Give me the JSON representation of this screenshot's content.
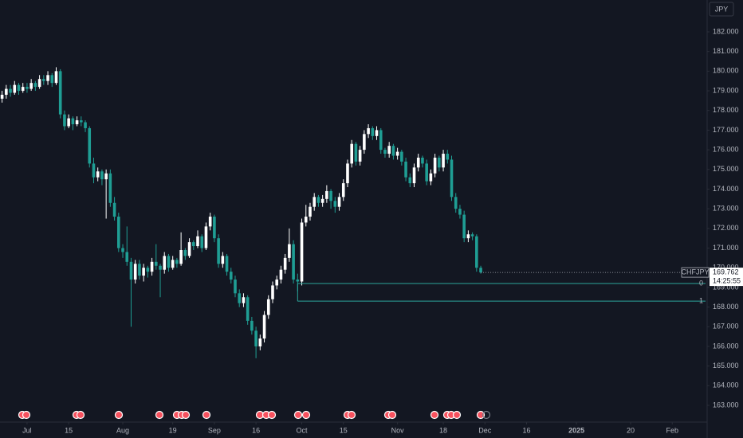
{
  "chart_data": {
    "type": "candlestick",
    "currency": "JPY",
    "symbol": "CHFJPY",
    "last_price": 169.762,
    "countdown": "14:25:55",
    "up_color": "#ffffff",
    "down_color": "#1f9e94",
    "line_color": "#2ba69b",
    "ylim": [
      162.15,
      183.62
    ],
    "yticks": [
      {
        "value": 163,
        "label": "163.000"
      },
      {
        "value": 164,
        "label": "164.000"
      },
      {
        "value": 165,
        "label": "165.000"
      },
      {
        "value": 166,
        "label": "166.000"
      },
      {
        "value": 167,
        "label": "167.000"
      },
      {
        "value": 168,
        "label": "168.000"
      },
      {
        "value": 169,
        "label": "169.000"
      },
      {
        "value": 170,
        "label": "170.000"
      },
      {
        "value": 171,
        "label": "171.000"
      },
      {
        "value": 172,
        "label": "172.000"
      },
      {
        "value": 173,
        "label": "173.000"
      },
      {
        "value": 174,
        "label": "174.000"
      },
      {
        "value": 175,
        "label": "175.000"
      },
      {
        "value": 176,
        "label": "176.000"
      },
      {
        "value": 177,
        "label": "177.000"
      },
      {
        "value": 178,
        "label": "178.000"
      },
      {
        "value": 179,
        "label": "179.000"
      },
      {
        "value": 180,
        "label": "180.000"
      },
      {
        "value": 181,
        "label": "181.000"
      },
      {
        "value": 182,
        "label": "182.000"
      }
    ],
    "xlim": [
      -6.5,
      163
    ],
    "xticks": [
      {
        "value": 0,
        "label": "Jul"
      },
      {
        "value": 10,
        "label": "15"
      },
      {
        "value": 23,
        "label": "Aug"
      },
      {
        "value": 35,
        "label": "19"
      },
      {
        "value": 45,
        "label": "Sep"
      },
      {
        "value": 55,
        "label": "16"
      },
      {
        "value": 66,
        "label": "Oct"
      },
      {
        "value": 76,
        "label": "15"
      },
      {
        "value": 89,
        "label": "Nov"
      },
      {
        "value": 100,
        "label": "18"
      },
      {
        "value": 110,
        "label": "Dec"
      },
      {
        "value": 120,
        "label": "16"
      },
      {
        "value": 132,
        "label": "2025"
      },
      {
        "value": 145,
        "label": "20"
      },
      {
        "value": 155,
        "label": "Feb"
      }
    ],
    "fib_from": 65,
    "fib_levels": [
      {
        "label": "0",
        "value": 169.2
      },
      {
        "label": "1",
        "value": 168.3
      }
    ],
    "x": [
      -6,
      -5,
      -4,
      -3,
      -2,
      -1,
      0,
      1,
      2,
      3,
      4,
      5,
      6,
      7,
      8,
      9,
      10,
      11,
      12,
      13,
      14,
      15,
      16,
      17,
      18,
      19,
      20,
      21,
      22,
      23,
      24,
      25,
      26,
      27,
      28,
      29,
      30,
      31,
      32,
      33,
      34,
      35,
      36,
      37,
      38,
      39,
      40,
      41,
      42,
      43,
      44,
      45,
      46,
      47,
      48,
      49,
      50,
      51,
      52,
      53,
      54,
      55,
      56,
      57,
      58,
      59,
      60,
      61,
      62,
      63,
      64,
      65,
      66,
      67,
      68,
      69,
      70,
      71,
      72,
      73,
      74,
      75,
      76,
      77,
      78,
      79,
      80,
      81,
      82,
      83,
      84,
      85,
      86,
      87,
      88,
      89,
      90,
      91,
      92,
      93,
      94,
      95,
      96,
      97,
      98,
      99,
      100,
      101,
      102,
      103,
      104,
      105,
      106,
      107,
      108,
      109
    ],
    "open": [
      178.6,
      178.8,
      179.1,
      178.9,
      179.3,
      179.0,
      179.2,
      179.1,
      179.4,
      179.2,
      179.6,
      179.5,
      179.8,
      179.4,
      180.0,
      177.8,
      177.2,
      177.6,
      177.3,
      177.5,
      177.4,
      177.1,
      175.3,
      174.6,
      174.9,
      174.5,
      174.8,
      173.3,
      172.6,
      171.0,
      170.8,
      170.3,
      169.4,
      170.2,
      169.6,
      170.0,
      169.8,
      170.3,
      170.1,
      169.9,
      170.6,
      170.0,
      170.4,
      170.2,
      170.9,
      170.6,
      171.3,
      171.1,
      171.6,
      171.0,
      172.1,
      172.6,
      171.5,
      170.2,
      170.6,
      169.8,
      169.4,
      168.7,
      168.2,
      168.5,
      167.3,
      166.8,
      166.0,
      166.4,
      167.6,
      168.4,
      169.1,
      169.4,
      169.9,
      170.5,
      171.2,
      169.4,
      169.3,
      172.3,
      172.6,
      173.1,
      173.6,
      173.3,
      173.5,
      173.9,
      173.4,
      173.1,
      173.6,
      174.3,
      175.3,
      176.3,
      175.4,
      176.0,
      176.8,
      177.1,
      176.7,
      177.0,
      176.0,
      175.8,
      176.2,
      175.7,
      175.9,
      175.4,
      174.6,
      174.3,
      175.1,
      175.6,
      175.3,
      174.4,
      174.8,
      175.6,
      175.1,
      175.8,
      175.5,
      173.6,
      173.0,
      172.7,
      171.5,
      171.7,
      171.6,
      170.0
    ],
    "high": [
      179.0,
      179.3,
      179.3,
      179.5,
      179.4,
      179.4,
      179.4,
      179.6,
      179.5,
      179.8,
      179.8,
      180.0,
      179.9,
      180.2,
      180.1,
      178.0,
      177.8,
      177.7,
      177.7,
      177.7,
      177.5,
      177.2,
      175.6,
      175.1,
      175.0,
      175.0,
      175.0,
      173.6,
      172.8,
      171.2,
      172.1,
      170.5,
      170.4,
      170.4,
      170.2,
      170.1,
      170.5,
      171.2,
      170.2,
      170.8,
      170.7,
      170.6,
      170.5,
      171.8,
      171.0,
      171.5,
      171.4,
      171.9,
      171.7,
      172.3,
      172.8,
      172.7,
      171.7,
      170.8,
      170.7,
      170.0,
      169.6,
      168.9,
      168.7,
      168.6,
      167.5,
      167.0,
      166.6,
      167.8,
      168.6,
      169.3,
      169.6,
      170.1,
      170.7,
      172.0,
      171.4,
      169.7,
      172.5,
      173.2,
      173.3,
      173.8,
      173.7,
      173.7,
      174.2,
      174.0,
      173.6,
      173.8,
      174.5,
      175.5,
      176.5,
      176.4,
      176.2,
      177.0,
      177.3,
      177.2,
      177.2,
      177.1,
      176.1,
      176.4,
      176.3,
      176.1,
      176.0,
      175.6,
      174.8,
      175.3,
      175.8,
      175.7,
      175.5,
      175.0,
      175.8,
      175.7,
      176.0,
      176.0,
      175.7,
      173.8,
      173.2,
      172.9,
      171.9,
      171.8,
      171.7,
      170.1
    ],
    "low": [
      178.4,
      178.6,
      178.7,
      178.8,
      178.8,
      178.9,
      178.9,
      179.0,
      179.0,
      179.1,
      179.3,
      179.3,
      179.2,
      179.3,
      177.6,
      177.0,
      177.1,
      177.0,
      177.2,
      177.2,
      176.9,
      175.1,
      174.3,
      174.4,
      174.2,
      172.5,
      173.1,
      172.4,
      170.8,
      170.5,
      170.1,
      167.0,
      169.2,
      169.4,
      169.3,
      169.5,
      169.6,
      169.9,
      168.5,
      169.7,
      169.8,
      169.9,
      170.0,
      170.1,
      170.4,
      170.5,
      170.9,
      171.0,
      170.8,
      170.9,
      171.9,
      171.3,
      170.0,
      170.0,
      169.6,
      169.2,
      168.5,
      168.0,
      168.0,
      167.1,
      166.6,
      165.4,
      165.8,
      166.2,
      167.4,
      168.2,
      168.9,
      169.2,
      169.7,
      170.3,
      169.2,
      168.8,
      169.1,
      172.1,
      172.4,
      172.9,
      173.1,
      173.1,
      173.3,
      173.0,
      172.8,
      172.9,
      173.4,
      174.1,
      175.1,
      175.2,
      175.2,
      175.8,
      176.6,
      176.5,
      176.5,
      175.8,
      175.6,
      175.6,
      175.5,
      175.5,
      175.2,
      174.4,
      174.1,
      174.1,
      174.9,
      175.1,
      174.2,
      174.2,
      174.6,
      174.9,
      174.9,
      175.3,
      173.4,
      172.8,
      172.5,
      171.3,
      171.3,
      171.4,
      169.8,
      169.7
    ],
    "close": [
      178.8,
      179.1,
      178.9,
      179.3,
      179.0,
      179.2,
      179.1,
      179.4,
      179.2,
      179.6,
      179.5,
      179.8,
      179.4,
      180.0,
      177.8,
      177.2,
      177.6,
      177.3,
      177.5,
      177.4,
      177.1,
      175.3,
      174.6,
      174.9,
      174.5,
      174.8,
      173.3,
      172.6,
      171.0,
      170.8,
      170.3,
      169.4,
      170.2,
      169.6,
      170.0,
      169.8,
      170.3,
      170.1,
      169.9,
      170.6,
      170.0,
      170.4,
      170.2,
      170.9,
      170.6,
      171.3,
      171.1,
      171.6,
      171.0,
      172.1,
      172.6,
      171.5,
      170.2,
      170.6,
      169.8,
      169.4,
      168.7,
      168.2,
      168.5,
      167.3,
      166.8,
      166.0,
      166.4,
      167.6,
      168.4,
      169.1,
      169.4,
      169.9,
      170.5,
      171.2,
      169.4,
      169.3,
      172.3,
      172.6,
      173.1,
      173.6,
      173.3,
      173.5,
      173.9,
      173.4,
      173.1,
      173.6,
      174.3,
      175.3,
      176.3,
      175.4,
      176.0,
      176.8,
      177.1,
      176.7,
      177.0,
      176.0,
      175.8,
      176.2,
      175.7,
      175.9,
      175.4,
      174.6,
      174.3,
      175.1,
      175.6,
      175.3,
      174.4,
      174.8,
      175.6,
      175.1,
      175.8,
      175.5,
      173.6,
      173.0,
      172.7,
      171.5,
      171.7,
      171.6,
      170.0,
      169.762
    ]
  }
}
